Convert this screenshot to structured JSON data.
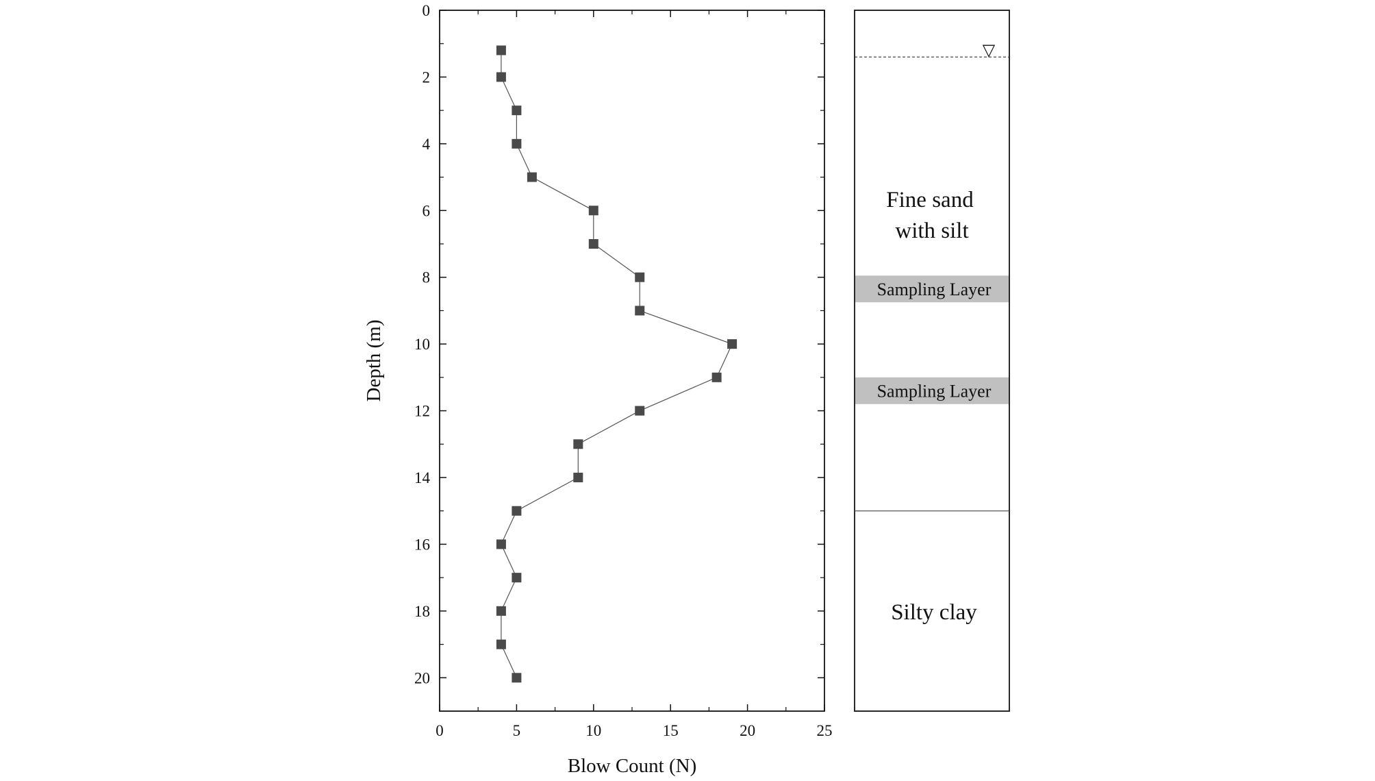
{
  "chart_data": {
    "type": "scatter",
    "xlabel": "Blow Count (N)",
    "ylabel": "Depth (m)",
    "xlim": [
      0,
      25
    ],
    "ylim": [
      0,
      21
    ],
    "y_inverted": true,
    "x_ticks": [
      0,
      5,
      10,
      15,
      20,
      25
    ],
    "y_ticks": [
      0,
      2,
      4,
      6,
      8,
      10,
      12,
      14,
      16,
      18,
      20
    ],
    "grid": false,
    "marker": "square",
    "connected_by_line": true,
    "points": [
      {
        "x": 4,
        "y": 1.2
      },
      {
        "x": 4,
        "y": 2
      },
      {
        "x": 5,
        "y": 3
      },
      {
        "x": 5,
        "y": 4
      },
      {
        "x": 6,
        "y": 5
      },
      {
        "x": 10,
        "y": 6
      },
      {
        "x": 10,
        "y": 7
      },
      {
        "x": 13,
        "y": 8
      },
      {
        "x": 13,
        "y": 9
      },
      {
        "x": 19,
        "y": 10
      },
      {
        "x": 18,
        "y": 11
      },
      {
        "x": 13,
        "y": 12
      },
      {
        "x": 9,
        "y": 13
      },
      {
        "x": 9,
        "y": 14
      },
      {
        "x": 5,
        "y": 15
      },
      {
        "x": 4,
        "y": 16
      },
      {
        "x": 5,
        "y": 17
      },
      {
        "x": 4,
        "y": 18
      },
      {
        "x": 4,
        "y": 19
      },
      {
        "x": 5,
        "y": 20
      }
    ]
  },
  "soil_profile": {
    "water_table_depth": 1.4,
    "water_table_symbol": "▽",
    "layers": [
      {
        "label_lines": [
          "Fine sand",
          "with silt"
        ],
        "top": 0,
        "bottom": 15
      },
      {
        "label_lines": [
          "Silty clay"
        ],
        "top": 15,
        "bottom": 21
      }
    ],
    "sampling_layers": [
      {
        "label": "Sampling Layer",
        "top": 7.95,
        "bottom": 8.75
      },
      {
        "label": "Sampling Layer",
        "top": 11.0,
        "bottom": 11.8
      }
    ]
  },
  "colors": {
    "marker": "#4a4a4a",
    "line": "#555555",
    "sampling_fill": "#c0c0c0",
    "axis": "#111111"
  }
}
